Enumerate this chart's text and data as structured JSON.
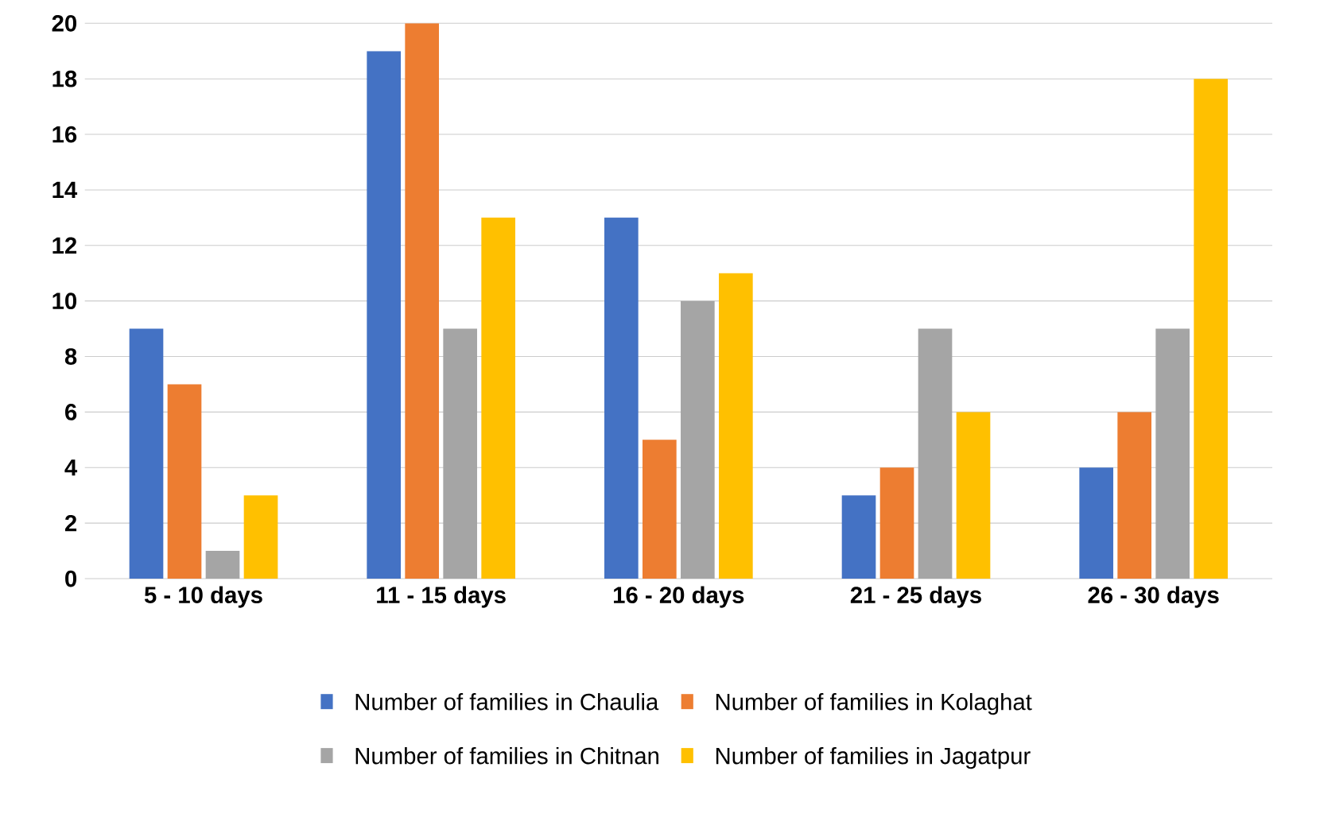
{
  "chart_data": {
    "type": "bar",
    "categories": [
      "5 - 10 days",
      "11 - 15 days",
      "16 - 20 days",
      "21 - 25 days",
      "26 - 30 days"
    ],
    "series": [
      {
        "name": "Number of families in Chaulia",
        "color": "#4472c4",
        "values": [
          9,
          19,
          13,
          3,
          4
        ]
      },
      {
        "name": "Number of families in Kolaghat",
        "color": "#ed7d31",
        "values": [
          7,
          20,
          5,
          4,
          6
        ]
      },
      {
        "name": "Number of families in Chitnan",
        "color": "#a5a5a5",
        "values": [
          1,
          9,
          10,
          9,
          9
        ]
      },
      {
        "name": "Number of families in Jagatpur",
        "color": "#ffc000",
        "values": [
          3,
          13,
          11,
          6,
          18
        ]
      }
    ],
    "ylim": [
      0,
      20
    ],
    "yticks": [
      0,
      2,
      4,
      6,
      8,
      10,
      12,
      14,
      16,
      18,
      20
    ],
    "grid": "y",
    "legend": "bottom"
  }
}
